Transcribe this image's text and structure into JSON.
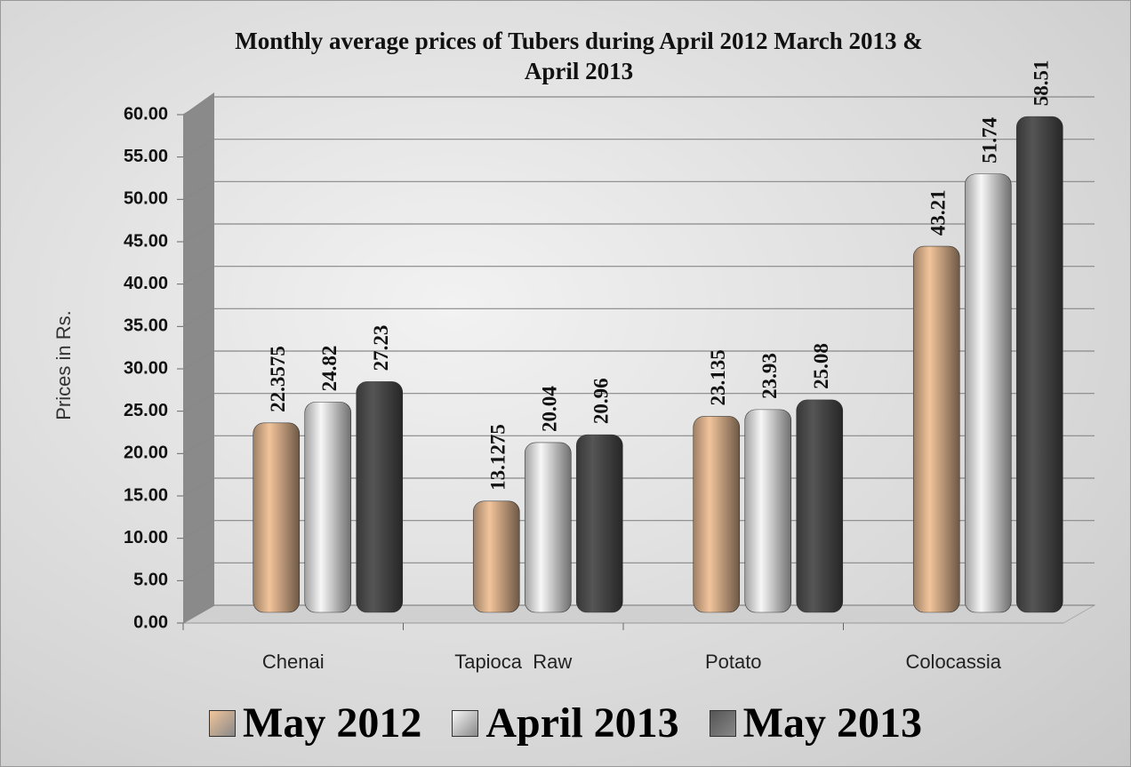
{
  "chart_data": {
    "type": "bar",
    "title": "Monthly average prices of Tubers during April  2012 March 2013 & April 2013",
    "y_label": "Prices in Rs.",
    "categories": [
      "Chenai",
      "Tapioca  Raw",
      "Potato",
      "Colocassia"
    ],
    "series": [
      {
        "name": "May 2012",
        "color": "#f2c49b",
        "values": [
          22.3575,
          13.1275,
          23.135,
          43.21
        ]
      },
      {
        "name": "April 2013",
        "color": "#f7f7f7",
        "values": [
          24.82,
          20.04,
          23.93,
          51.74
        ]
      },
      {
        "name": "May 2013",
        "color": "#555555",
        "values": [
          27.23,
          20.96,
          25.08,
          58.51
        ]
      }
    ],
    "ylim": [
      0,
      60
    ],
    "yticks": [
      {
        "value": 0,
        "label": "0.00"
      },
      {
        "value": 5,
        "label": "5.00"
      },
      {
        "value": 10,
        "label": "10.00"
      },
      {
        "value": 15,
        "label": "15.00"
      },
      {
        "value": 20,
        "label": "20.00"
      },
      {
        "value": 25,
        "label": "25.00"
      },
      {
        "value": 30,
        "label": "30.00"
      },
      {
        "value": 35,
        "label": "35.00"
      },
      {
        "value": 40,
        "label": "40.00"
      },
      {
        "value": 45,
        "label": "45.00"
      },
      {
        "value": 50,
        "label": "50.00"
      },
      {
        "value": 55,
        "label": "55.00"
      },
      {
        "value": 60,
        "label": "60.00"
      }
    ],
    "grid": true,
    "legend": "bottom"
  }
}
